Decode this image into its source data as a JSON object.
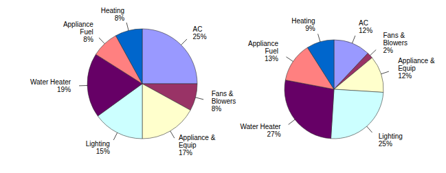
{
  "chart_data": [
    {
      "type": "pie",
      "categories": [
        "AC",
        "Fans & Blowers",
        "Appliance & Equip",
        "Lighting",
        "Water Heater",
        "Appliance Fuel",
        "Heating"
      ],
      "values": [
        25,
        8,
        17,
        15,
        19,
        8,
        8
      ],
      "value_labels": [
        "25%",
        "8%",
        "17%",
        "15%",
        "19%",
        "8%",
        "8%"
      ],
      "colors": [
        "#9999ff",
        "#993366",
        "#ffffcc",
        "#ccffff",
        "#660066",
        "#ff8080",
        "#0066cc"
      ],
      "data_labels": true
    },
    {
      "type": "pie",
      "categories": [
        "AC",
        "Fans & Blowers",
        "Appliance & Equip",
        "Lighting",
        "Water Heater",
        "Appliance Fuel",
        "Heating"
      ],
      "values": [
        12,
        2,
        12,
        25,
        27,
        13,
        9
      ],
      "value_labels": [
        "12%",
        "2%",
        "12%",
        "25%",
        "27%",
        "13%",
        "9%"
      ],
      "colors": [
        "#9999ff",
        "#993366",
        "#ffffcc",
        "#ccffff",
        "#660066",
        "#ff8080",
        "#0066cc"
      ],
      "data_labels": true
    }
  ]
}
